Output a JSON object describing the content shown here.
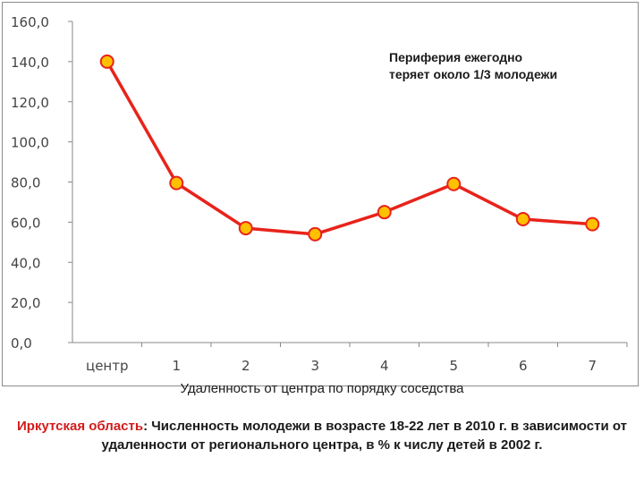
{
  "chart_data": {
    "type": "line",
    "categories": [
      "центр",
      "1",
      "2",
      "3",
      "4",
      "5",
      "6",
      "7"
    ],
    "series": [
      {
        "values": [
          140.0,
          79.5,
          57.0,
          54.0,
          65.0,
          79.0,
          61.5,
          59.0
        ],
        "color": "#e8231b",
        "marker_fill": "#ffc000",
        "marker_edge": "#e8231b"
      }
    ],
    "ylim": [
      0,
      160
    ],
    "y_ticks": [
      "0,0",
      "20,0",
      "40,0",
      "60,0",
      "80,0",
      "100,0",
      "120,0",
      "140,0",
      "160,0"
    ],
    "annotation": [
      "Периферия ежегодно",
      "теряет около 1/3 молодежи"
    ],
    "xlabel": "Удаленность от центра по порядку соседства",
    "grid": false
  },
  "caption": {
    "region": "Иркутская область",
    "text": ": Численность молодежи в возрасте 18-22 лет в 2010 г. в зависимости от удаленности от регионального центра, в % к числу детей в 2002 г."
  }
}
